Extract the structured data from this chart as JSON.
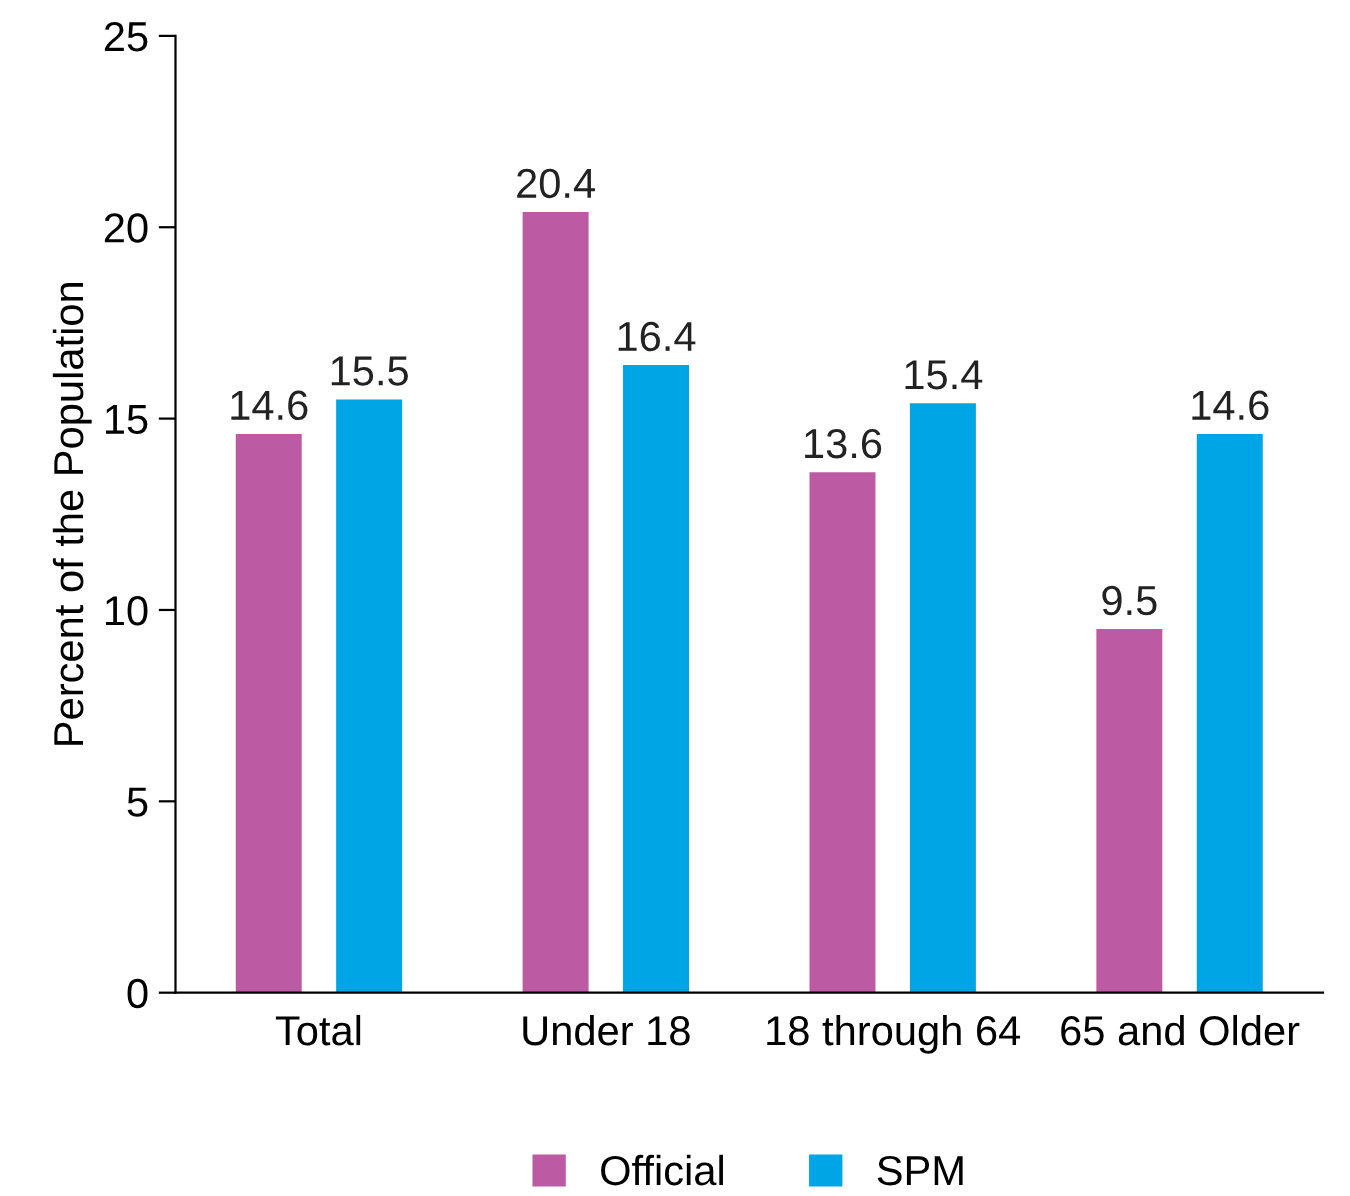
{
  "chart_data": {
    "type": "bar",
    "ylabel": "Percent of the Population",
    "categories": [
      "Total",
      "Under 18",
      "18 through 64",
      "65 and Older"
    ],
    "series": [
      {
        "name": "Official",
        "color": "#bc5ba4",
        "values": [
          14.6,
          20.4,
          13.6,
          9.5
        ]
      },
      {
        "name": "SPM",
        "color": "#00a5e5",
        "values": [
          15.5,
          16.4,
          15.4,
          14.6
        ]
      }
    ],
    "ylim": [
      0,
      25
    ],
    "yticks": [
      0,
      5,
      10,
      15,
      20,
      25
    ],
    "grid": false,
    "legend": "bottom",
    "data_labels": true
  }
}
